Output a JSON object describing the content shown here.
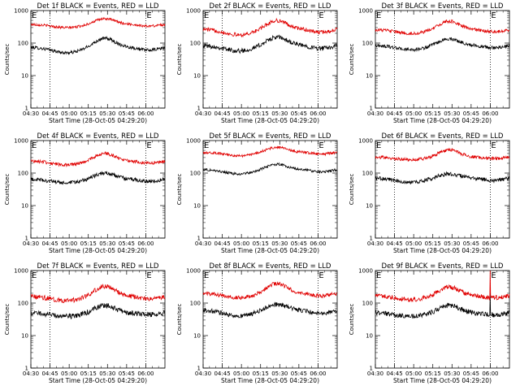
{
  "figure": {
    "page_title": "",
    "background": "#ffffff"
  },
  "chart_data": [
    {
      "type": "line",
      "panel": "det-1f",
      "title": "Det 1f BLACK = Events, RED = LLD",
      "xlabel": "Start Time (28-Oct-05 04:29:20)",
      "ylabel": "Counts/sec",
      "yscale": "log",
      "ylim": [
        1,
        1000
      ],
      "ytick_labels": [
        "1",
        "10",
        "100",
        "1000"
      ],
      "xtick_labels": [
        "04:30",
        "04:45",
        "05:00",
        "05:15",
        "05:30",
        "05:45",
        "06:00"
      ],
      "x_units": "minutes after 04:30",
      "xlim": [
        0,
        105
      ],
      "vlines": [
        15,
        90
      ],
      "flags": [
        {
          "x": 0,
          "text": "E"
        },
        {
          "x": 90,
          "text": "E"
        }
      ],
      "series": [
        {
          "name": "Events",
          "color": "#000000",
          "base": 75,
          "peak": 140,
          "dip": 48,
          "noise": 0.05
        },
        {
          "name": "LLD",
          "color": "#e00000",
          "base": 380,
          "peak": 560,
          "dip": 290,
          "noise": 0.04
        }
      ]
    },
    {
      "type": "line",
      "panel": "det-2f",
      "title": "Det 2f BLACK = Events, RED = LLD",
      "xlabel": "Start Time (28-Oct-05 04:29:20)",
      "ylabel": "Counts/sec",
      "yscale": "log",
      "ylim": [
        1,
        1000
      ],
      "ytick_labels": [
        "1",
        "10",
        "100",
        "1000"
      ],
      "xtick_labels": [
        "04:30",
        "04:45",
        "05:00",
        "05:15",
        "05:30",
        "05:45",
        "06:00"
      ],
      "x_units": "minutes after 04:30",
      "xlim": [
        0,
        105
      ],
      "vlines": [
        15,
        90
      ],
      "flags": [
        {
          "x": 0,
          "text": "E"
        },
        {
          "x": 90,
          "text": "E"
        }
      ],
      "series": [
        {
          "name": "Events",
          "color": "#000000",
          "base": 85,
          "peak": 150,
          "dip": 55,
          "noise": 0.07
        },
        {
          "name": "LLD",
          "color": "#e00000",
          "base": 270,
          "peak": 490,
          "dip": 170,
          "noise": 0.06
        }
      ]
    },
    {
      "type": "line",
      "panel": "det-3f",
      "title": "Det 3f BLACK = Events, RED = LLD",
      "xlabel": "Start Time (28-Oct-05 04:29:20)",
      "ylabel": "Counts/sec",
      "yscale": "log",
      "ylim": [
        1,
        1000
      ],
      "ytick_labels": [
        "1",
        "10",
        "100",
        "1000"
      ],
      "xtick_labels": [
        "04:30",
        "04:45",
        "05:00",
        "05:15",
        "05:30",
        "05:45",
        "06:00"
      ],
      "x_units": "minutes after 04:30",
      "xlim": [
        0,
        105
      ],
      "vlines": [
        15,
        90
      ],
      "flags": [
        {
          "x": 0,
          "text": "E"
        },
        {
          "x": 90,
          "text": "E"
        }
      ],
      "series": [
        {
          "name": "Events",
          "color": "#000000",
          "base": 85,
          "peak": 135,
          "dip": 60,
          "noise": 0.05
        },
        {
          "name": "LLD",
          "color": "#e00000",
          "base": 260,
          "peak": 470,
          "dip": 190,
          "noise": 0.05
        }
      ]
    },
    {
      "type": "line",
      "panel": "det-4f",
      "title": "Det 4f BLACK = Events, RED = LLD",
      "xlabel": "Start Time (28-Oct-05 04:29:20)",
      "ylabel": "Counts/sec",
      "yscale": "log",
      "ylim": [
        1,
        1000
      ],
      "ytick_labels": [
        "1",
        "10",
        "100",
        "1000"
      ],
      "xtick_labels": [
        "04:30",
        "04:45",
        "05:00",
        "05:15",
        "05:30",
        "05:45",
        "06:00"
      ],
      "x_units": "minutes after 04:30",
      "xlim": [
        0,
        105
      ],
      "vlines": [
        15,
        90
      ],
      "flags": [
        {
          "x": 0,
          "text": "E"
        },
        {
          "x": 90,
          "text": "E"
        }
      ],
      "series": [
        {
          "name": "Events",
          "color": "#000000",
          "base": 65,
          "peak": 100,
          "dip": 48,
          "noise": 0.06
        },
        {
          "name": "LLD",
          "color": "#e00000",
          "base": 240,
          "peak": 400,
          "dip": 170,
          "noise": 0.05
        }
      ]
    },
    {
      "type": "line",
      "panel": "det-5f",
      "title": "Det 5f BLACK = Events, RED = LLD",
      "xlabel": "Start Time (28-Oct-05 04:29:20)",
      "ylabel": "Counts/sec",
      "yscale": "log",
      "ylim": [
        1,
        1000
      ],
      "ytick_labels": [
        "1",
        "10",
        "100",
        "1000"
      ],
      "xtick_labels": [
        "04:30",
        "04:45",
        "05:00",
        "05:15",
        "05:30",
        "05:45",
        "06:00"
      ],
      "x_units": "minutes after 04:30",
      "xlim": [
        0,
        105
      ],
      "vlines": [
        90
      ],
      "flags": [
        {
          "x": 0,
          "text": "E"
        },
        {
          "x": 90,
          "text": "E"
        }
      ],
      "series": [
        {
          "name": "Events",
          "color": "#000000",
          "base": 130,
          "peak": 185,
          "dip": 90,
          "noise": 0.04
        },
        {
          "name": "LLD",
          "color": "#e00000",
          "base": 440,
          "peak": 620,
          "dip": 330,
          "noise": 0.04
        }
      ]
    },
    {
      "type": "line",
      "panel": "det-6f",
      "title": "Det 6f BLACK = Events, RED = LLD",
      "xlabel": "Start Time (28-Oct-05 04:29:20)",
      "ylabel": "Counts/sec",
      "yscale": "log",
      "ylim": [
        1,
        1000
      ],
      "ytick_labels": [
        "1",
        "10",
        "100",
        "1000"
      ],
      "xtick_labels": [
        "04:30",
        "04:45",
        "05:00",
        "05:15",
        "05:30",
        "05:45",
        "06:00"
      ],
      "x_units": "minutes after 04:30",
      "xlim": [
        0,
        105
      ],
      "vlines": [
        15,
        90
      ],
      "flags": [
        {
          "x": 0,
          "text": "E"
        },
        {
          "x": 90,
          "text": "E"
        }
      ],
      "series": [
        {
          "name": "Events",
          "color": "#000000",
          "base": 70,
          "peak": 95,
          "dip": 50,
          "noise": 0.06
        },
        {
          "name": "LLD",
          "color": "#e00000",
          "base": 310,
          "peak": 520,
          "dip": 250,
          "noise": 0.05
        }
      ]
    },
    {
      "type": "line",
      "panel": "det-7f",
      "title": "Det 7f BLACK = Events, RED = LLD",
      "xlabel": "Start Time (28-Oct-05 04:29:20)",
      "ylabel": "Counts/sec",
      "yscale": "log",
      "ylim": [
        1,
        1000
      ],
      "ytick_labels": [
        "1",
        "10",
        "100",
        "1000"
      ],
      "xtick_labels": [
        "04:30",
        "04:45",
        "05:00",
        "05:15",
        "05:30",
        "05:45",
        "06:00"
      ],
      "x_units": "minutes after 04:30",
      "xlim": [
        0,
        105
      ],
      "vlines": [
        15,
        90
      ],
      "flags": [
        {
          "x": 0,
          "text": "E"
        },
        {
          "x": 90,
          "text": "E"
        }
      ],
      "series": [
        {
          "name": "Events",
          "color": "#000000",
          "base": 50,
          "peak": 85,
          "dip": 38,
          "noise": 0.08
        },
        {
          "name": "LLD",
          "color": "#e00000",
          "base": 160,
          "peak": 330,
          "dip": 115,
          "noise": 0.07
        }
      ]
    },
    {
      "type": "line",
      "panel": "det-8f",
      "title": "Det 8f BLACK = Events, RED = LLD",
      "xlabel": "Start Time (28-Oct-05 04:29:20)",
      "ylabel": "Counts/sec",
      "yscale": "log",
      "ylim": [
        1,
        1000
      ],
      "ytick_labels": [
        "1",
        "10",
        "100",
        "1000"
      ],
      "xtick_labels": [
        "04:30",
        "04:45",
        "05:00",
        "05:15",
        "05:30",
        "05:45",
        "06:00"
      ],
      "x_units": "minutes after 04:30",
      "xlim": [
        0,
        105
      ],
      "vlines": [
        15,
        90
      ],
      "flags": [
        {
          "x": 0,
          "text": "E"
        },
        {
          "x": 90,
          "text": "E"
        }
      ],
      "series": [
        {
          "name": "Events",
          "color": "#000000",
          "base": 60,
          "peak": 90,
          "dip": 38,
          "noise": 0.07
        },
        {
          "name": "LLD",
          "color": "#e00000",
          "base": 200,
          "peak": 400,
          "dip": 140,
          "noise": 0.06
        }
      ]
    },
    {
      "type": "line",
      "panel": "det-9f",
      "title": "Det 9f BLACK = Events, RED = LLD",
      "xlabel": "Start Time (28-Oct-05 04:29:20)",
      "ylabel": "Counts/sec",
      "yscale": "log",
      "ylim": [
        1,
        1000
      ],
      "ytick_labels": [
        "1",
        "10",
        "100",
        "1000"
      ],
      "xtick_labels": [
        "04:30",
        "04:45",
        "05:00",
        "05:15",
        "05:30",
        "05:45",
        "06:00"
      ],
      "x_units": "minutes after 04:30",
      "xlim": [
        0,
        105
      ],
      "vlines": [
        15,
        90
      ],
      "flags": [
        {
          "x": 0,
          "text": "E"
        },
        {
          "x": 90,
          "text": "E"
        }
      ],
      "spike": {
        "x": 90,
        "y": 1000
      },
      "series": [
        {
          "name": "Events",
          "color": "#000000",
          "base": 50,
          "peak": 85,
          "dip": 38,
          "noise": 0.08
        },
        {
          "name": "LLD",
          "color": "#e00000",
          "base": 170,
          "peak": 310,
          "dip": 125,
          "noise": 0.07
        }
      ]
    }
  ]
}
